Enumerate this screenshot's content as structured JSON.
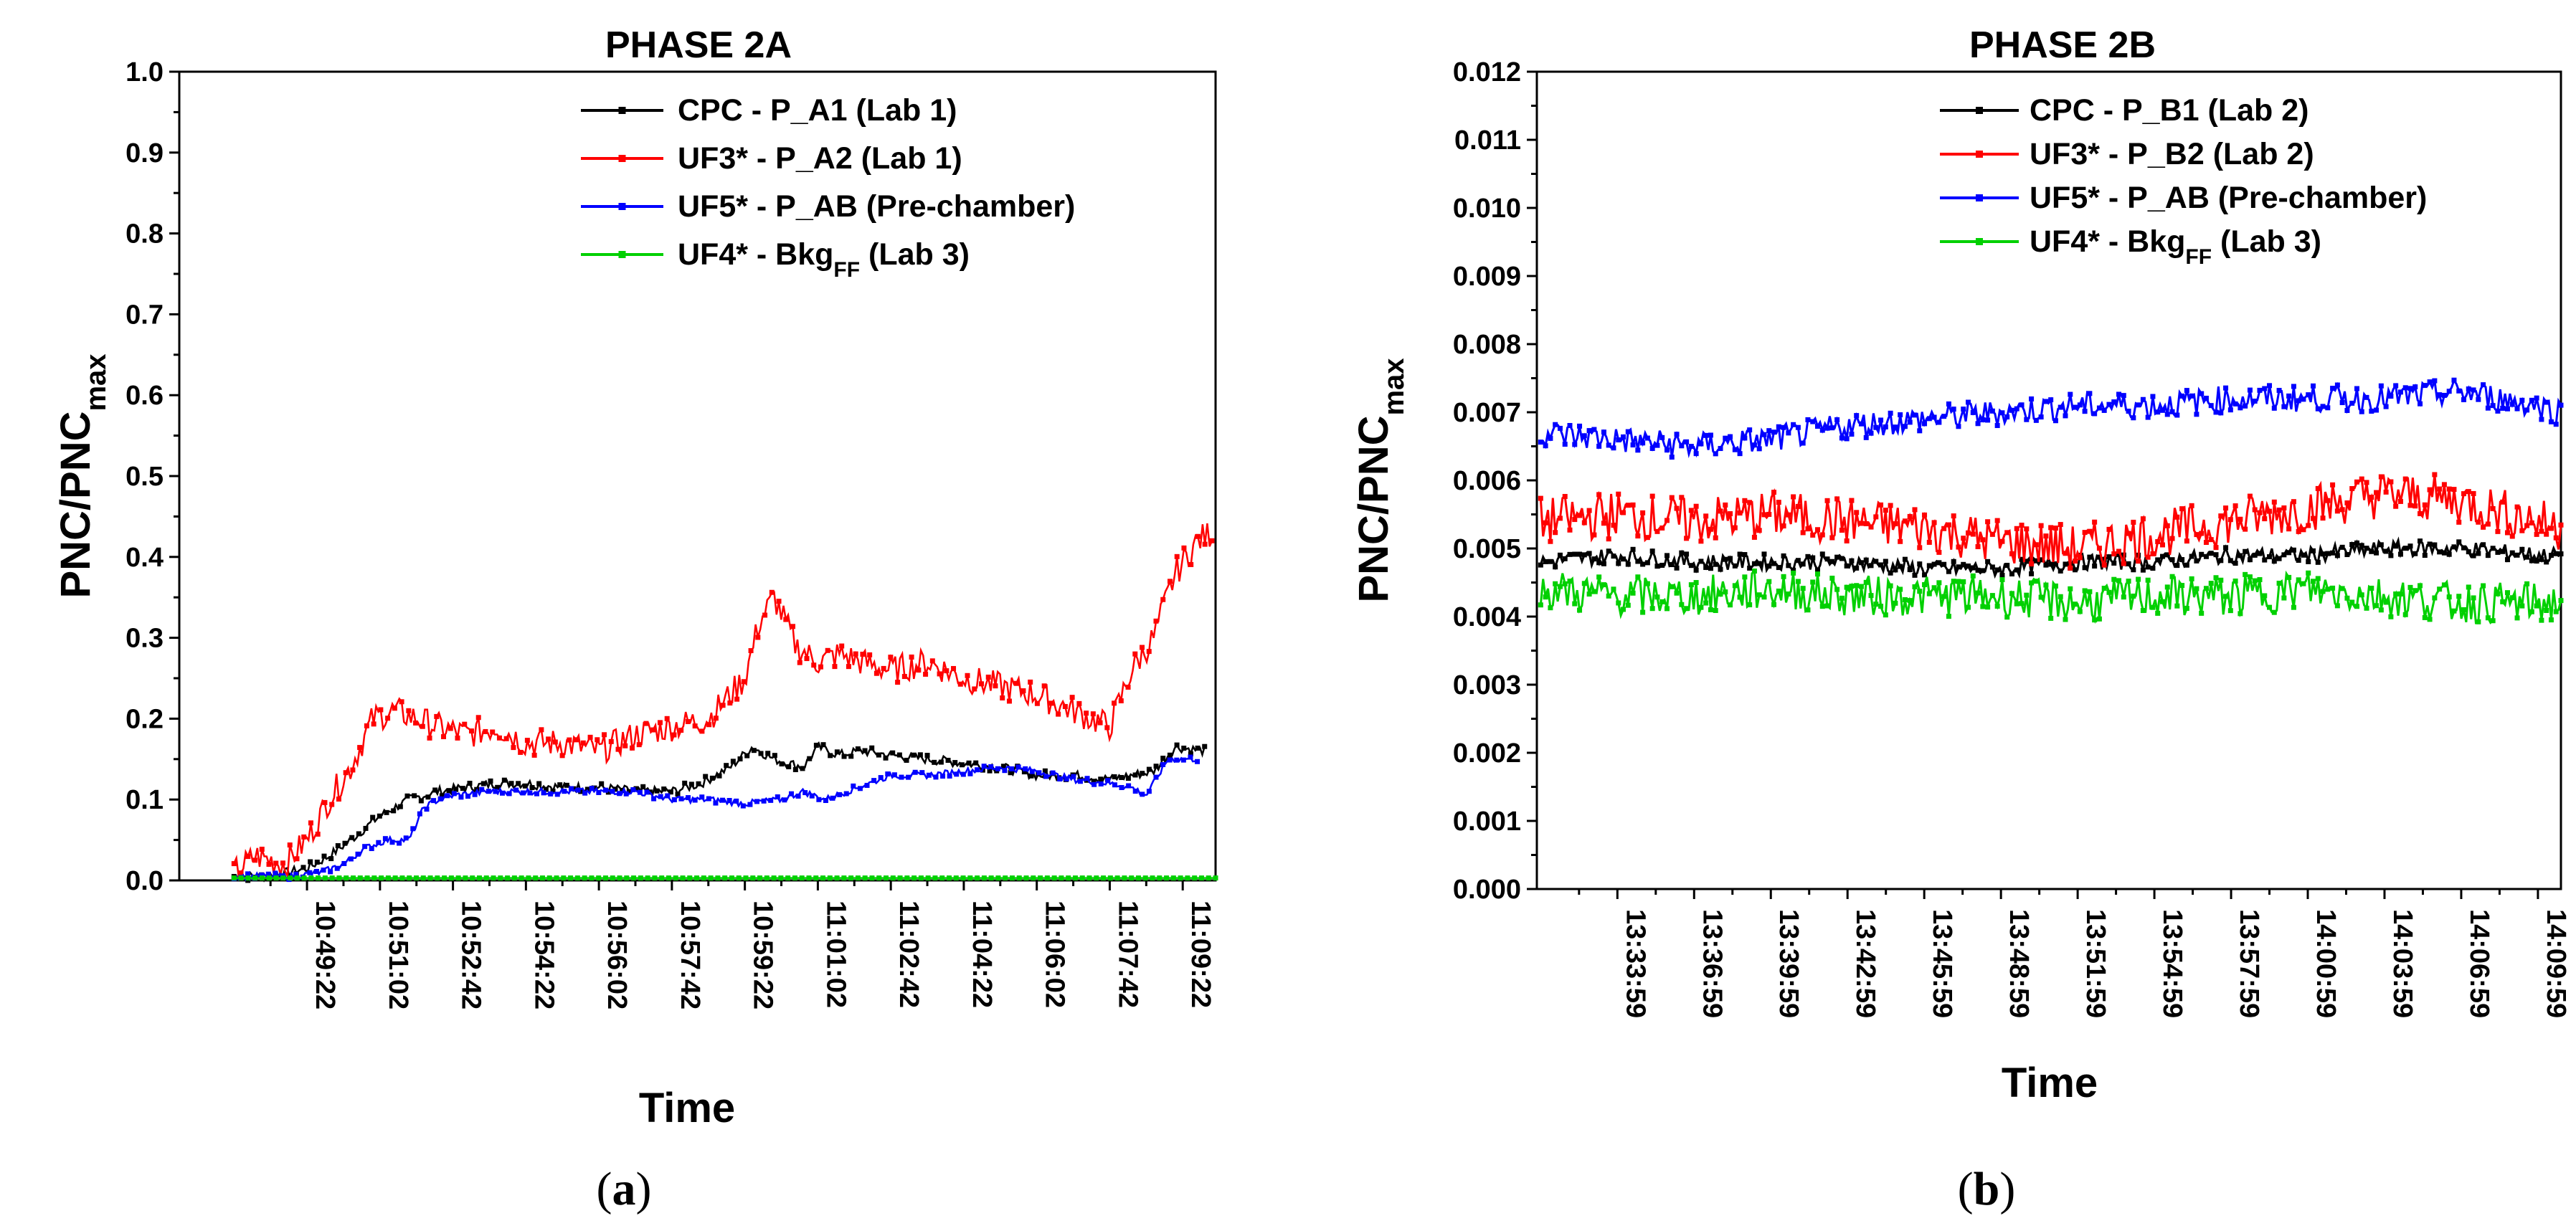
{
  "chart_data": [
    {
      "panel_label": "a",
      "type": "line",
      "title": "PHASE 2A",
      "xlabel": "Time",
      "ylabel": "PNC/PNC",
      "ylabel_sub": "max",
      "ylim": [
        0,
        1.0
      ],
      "y_ticks": [
        "0.0",
        "0.1",
        "0.2",
        "0.3",
        "0.4",
        "0.5",
        "0.6",
        "0.7",
        "0.8",
        "0.9",
        "1.0"
      ],
      "x_ticks": [
        "10:49:22",
        "10:51:02",
        "10:52:42",
        "10:54:22",
        "10:56:02",
        "10:57:42",
        "10:59:22",
        "11:01:02",
        "11:02:42",
        "11:04:22",
        "11:06:02",
        "11:07:42",
        "11:09:22"
      ],
      "x_tick_positions": [
        1.0,
        2.0,
        3.0,
        4.0,
        5.0,
        6.0,
        7.0,
        8.0,
        9.0,
        10.0,
        11.0,
        12.0,
        13.0
      ],
      "x_range": [
        -0.75,
        13.45
      ],
      "legend_position": "top-right",
      "series": [
        {
          "name": "CPC - P_A1 (Lab 1)",
          "legend_main": "CPC - P_A1 (Lab 1)",
          "legend_sub": "",
          "legend_tail": "",
          "color": "#000000",
          "x": [
            0.0,
            0.5,
            1.0,
            1.3,
            1.6,
            2.0,
            2.4,
            2.8,
            3.2,
            3.6,
            4.0,
            4.5,
            5.0,
            5.5,
            6.0,
            6.4,
            6.8,
            7.1,
            7.4,
            7.8,
            8.0,
            8.3,
            8.6,
            9.0,
            9.5,
            10.0,
            10.5,
            11.0,
            11.5,
            12.0,
            12.3,
            12.6,
            12.9,
            13.3
          ],
          "y": [
            0.005,
            0.005,
            0.015,
            0.03,
            0.05,
            0.08,
            0.1,
            0.11,
            0.115,
            0.12,
            0.12,
            0.115,
            0.115,
            0.11,
            0.11,
            0.12,
            0.14,
            0.165,
            0.15,
            0.14,
            0.165,
            0.155,
            0.16,
            0.155,
            0.15,
            0.145,
            0.14,
            0.13,
            0.13,
            0.125,
            0.13,
            0.135,
            0.165,
            0.16
          ]
        },
        {
          "name": "UF3* - P_A2 (Lab 1)",
          "legend_main": "UF3* - P_A2 (Lab 1)",
          "legend_sub": "",
          "legend_tail": "",
          "color": "#ff0000",
          "x": [
            0.0,
            0.3,
            0.7,
            1.0,
            1.3,
            1.6,
            1.9,
            2.2,
            2.5,
            2.8,
            3.2,
            3.6,
            4.0,
            4.5,
            5.0,
            5.5,
            6.0,
            6.5,
            7.0,
            7.2,
            7.4,
            7.7,
            8.0,
            8.3,
            8.6,
            9.0,
            9.5,
            10.0,
            10.5,
            11.0,
            11.5,
            12.0,
            12.3,
            12.6,
            12.9,
            13.2,
            13.4
          ],
          "y": [
            0.01,
            0.03,
            0.02,
            0.05,
            0.1,
            0.14,
            0.2,
            0.21,
            0.2,
            0.19,
            0.18,
            0.19,
            0.17,
            0.17,
            0.16,
            0.18,
            0.19,
            0.2,
            0.25,
            0.32,
            0.35,
            0.29,
            0.27,
            0.28,
            0.27,
            0.26,
            0.27,
            0.25,
            0.24,
            0.23,
            0.21,
            0.19,
            0.26,
            0.3,
            0.38,
            0.42,
            0.43
          ]
        },
        {
          "name": "UF5* - P_AB (Pre-chamber)",
          "legend_main": "UF5* - P_AB (Pre-chamber)",
          "legend_sub": "",
          "legend_tail": "",
          "color": "#0000ff",
          "x": [
            0.0,
            0.8,
            1.2,
            1.5,
            1.8,
            2.1,
            2.4,
            2.6,
            2.8,
            3.0,
            3.5,
            4.0,
            4.5,
            5.0,
            5.5,
            6.0,
            6.5,
            7.0,
            7.5,
            7.8,
            8.1,
            8.4,
            8.7,
            9.0,
            9.5,
            10.0,
            10.5,
            11.0,
            11.5,
            12.0,
            12.3,
            12.5,
            12.8,
            13.2
          ],
          "y": [
            0.005,
            0.005,
            0.01,
            0.02,
            0.04,
            0.05,
            0.05,
            0.09,
            0.1,
            0.105,
            0.11,
            0.11,
            0.11,
            0.11,
            0.11,
            0.1,
            0.1,
            0.095,
            0.1,
            0.11,
            0.1,
            0.11,
            0.12,
            0.13,
            0.13,
            0.135,
            0.14,
            0.135,
            0.125,
            0.12,
            0.115,
            0.105,
            0.15,
            0.15
          ]
        },
        {
          "name": "UF4* - Bkg FF (Lab 3)",
          "legend_main": "UF4* - Bkg",
          "legend_sub": "FF",
          "legend_tail": " (Lab 3)",
          "color": "#00d000",
          "x": [
            0.0,
            13.45
          ],
          "y": [
            0.003,
            0.003
          ]
        }
      ]
    },
    {
      "panel_label": "b",
      "type": "line",
      "title": "PHASE 2B",
      "xlabel": "Time",
      "ylabel": "PNC/PNC",
      "ylabel_sub": "max",
      "ylim": [
        0,
        0.012
      ],
      "y_ticks": [
        "0.000",
        "0.001",
        "0.002",
        "0.003",
        "0.004",
        "0.005",
        "0.006",
        "0.007",
        "0.008",
        "0.009",
        "0.010",
        "0.011",
        "0.012"
      ],
      "x_ticks": [
        "13:33:59",
        "13:36:59",
        "13:39:59",
        "13:42:59",
        "13:45:59",
        "13:48:59",
        "13:51:59",
        "13:54:59",
        "13:57:59",
        "14:00:59",
        "14:03:59",
        "14:06:59",
        "14:09:59"
      ],
      "x_tick_positions": [
        1.0,
        2.0,
        3.0,
        4.0,
        5.0,
        6.0,
        7.0,
        8.0,
        9.0,
        10.0,
        11.0,
        12.0,
        13.0
      ],
      "x_range": [
        -0.05,
        13.3
      ],
      "legend_position": "top-right",
      "series": [
        {
          "name": "CPC - P_B1 (Lab 2)",
          "legend_main": "CPC - P_B1 (Lab 2)",
          "legend_sub": "",
          "legend_tail": "",
          "color": "#000000",
          "x": [
            0.0,
            1.0,
            2.0,
            3.0,
            4.0,
            5.0,
            6.0,
            7.0,
            8.0,
            9.0,
            10.0,
            11.0,
            12.0,
            13.0,
            13.3
          ],
          "y": [
            0.0048,
            0.0049,
            0.0048,
            0.0048,
            0.0048,
            0.0047,
            0.0047,
            0.0048,
            0.0048,
            0.0049,
            0.0049,
            0.005,
            0.005,
            0.0049,
            0.0049
          ]
        },
        {
          "name": "UF3* - P_B2 (Lab 2)",
          "legend_main": "UF3* - P_B2 (Lab 2)",
          "legend_sub": "",
          "legend_tail": "",
          "color": "#ff0000",
          "x": [
            0.0,
            1.0,
            2.0,
            3.0,
            4.0,
            5.0,
            6.0,
            7.0,
            8.0,
            9.0,
            10.0,
            11.0,
            12.0,
            13.0,
            13.3
          ],
          "y": [
            0.0054,
            0.0055,
            0.0054,
            0.0055,
            0.0054,
            0.0053,
            0.0051,
            0.005,
            0.0052,
            0.0054,
            0.0056,
            0.0058,
            0.0057,
            0.0054,
            0.0053
          ]
        },
        {
          "name": "UF5* - P_AB (Pre-chamber)",
          "legend_main": "UF5* - P_AB (Pre-chamber)",
          "legend_sub": "",
          "legend_tail": "",
          "color": "#0000ff",
          "x": [
            0.0,
            1.0,
            2.0,
            3.0,
            4.0,
            5.0,
            6.0,
            7.0,
            8.0,
            9.0,
            10.0,
            11.0,
            12.0,
            13.0,
            13.3
          ],
          "y": [
            0.0067,
            0.0066,
            0.0065,
            0.0066,
            0.0068,
            0.0069,
            0.007,
            0.0071,
            0.0071,
            0.0072,
            0.0072,
            0.0072,
            0.0073,
            0.0071,
            0.007
          ]
        },
        {
          "name": "UF4* - Bkg FF (Lab 3)",
          "legend_main": "UF4* - Bkg",
          "legend_sub": "FF",
          "legend_tail": " (Lab 3)",
          "color": "#00d000",
          "x": [
            0.0,
            1.0,
            2.0,
            3.0,
            4.0,
            5.0,
            6.0,
            7.0,
            8.0,
            9.0,
            10.0,
            11.0,
            12.0,
            13.0,
            13.3
          ],
          "y": [
            0.0044,
            0.0043,
            0.0043,
            0.0044,
            0.0043,
            0.0043,
            0.0043,
            0.0042,
            0.0043,
            0.0043,
            0.0044,
            0.0043,
            0.0042,
            0.0042,
            0.0042
          ]
        }
      ]
    }
  ]
}
